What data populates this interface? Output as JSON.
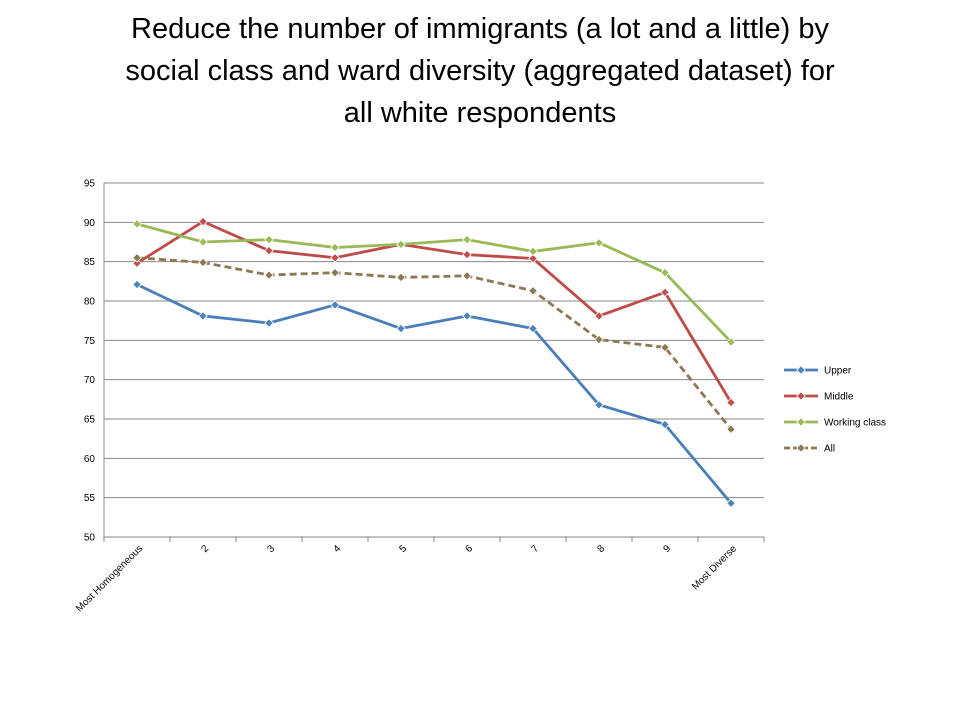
{
  "title_lines": [
    "Reduce the number of immigrants (a lot and a little) by",
    "social class and ward diversity (aggregated dataset) for",
    "all white respondents"
  ],
  "chart_data": {
    "type": "line",
    "title": "Reduce the number of immigrants (a lot and a little) by social class and ward diversity (aggregated dataset) for all white respondents",
    "xlabel": "",
    "ylabel": "",
    "categories": [
      "Most Homogeneous",
      "2",
      "3",
      "4",
      "5",
      "6",
      "7",
      "8",
      "9",
      "Most Diverse"
    ],
    "ylim": [
      50,
      95
    ],
    "yticks": [
      50,
      55,
      60,
      65,
      70,
      75,
      80,
      85,
      90,
      95
    ],
    "grid": "horizontal",
    "legend_position": "right",
    "series": [
      {
        "name": "Upper",
        "color": "#4A7EBB",
        "dashed": false,
        "marker_fill": "#4F81BD",
        "values": [
          82.1,
          78.1,
          77.2,
          79.5,
          76.5,
          78.1,
          76.5,
          66.8,
          64.3,
          54.3
        ]
      },
      {
        "name": "Middle",
        "color": "#BE4B48",
        "dashed": false,
        "marker_fill": "#C0504D",
        "values": [
          84.8,
          90.1,
          86.4,
          85.5,
          87.2,
          85.9,
          85.4,
          78.1,
          81.1,
          67.1
        ]
      },
      {
        "name": "Working class",
        "color": "#98B954",
        "dashed": false,
        "marker_fill": "#9BBB59",
        "values": [
          89.8,
          87.5,
          87.8,
          86.8,
          87.2,
          87.8,
          86.3,
          87.4,
          83.6,
          74.8
        ]
      },
      {
        "name": "All",
        "color": "#8C7853",
        "dashed": true,
        "marker_fill": "#8C7853",
        "values": [
          85.5,
          84.9,
          83.3,
          83.6,
          83.0,
          83.2,
          81.3,
          75.1,
          74.1,
          63.7
        ]
      }
    ]
  }
}
